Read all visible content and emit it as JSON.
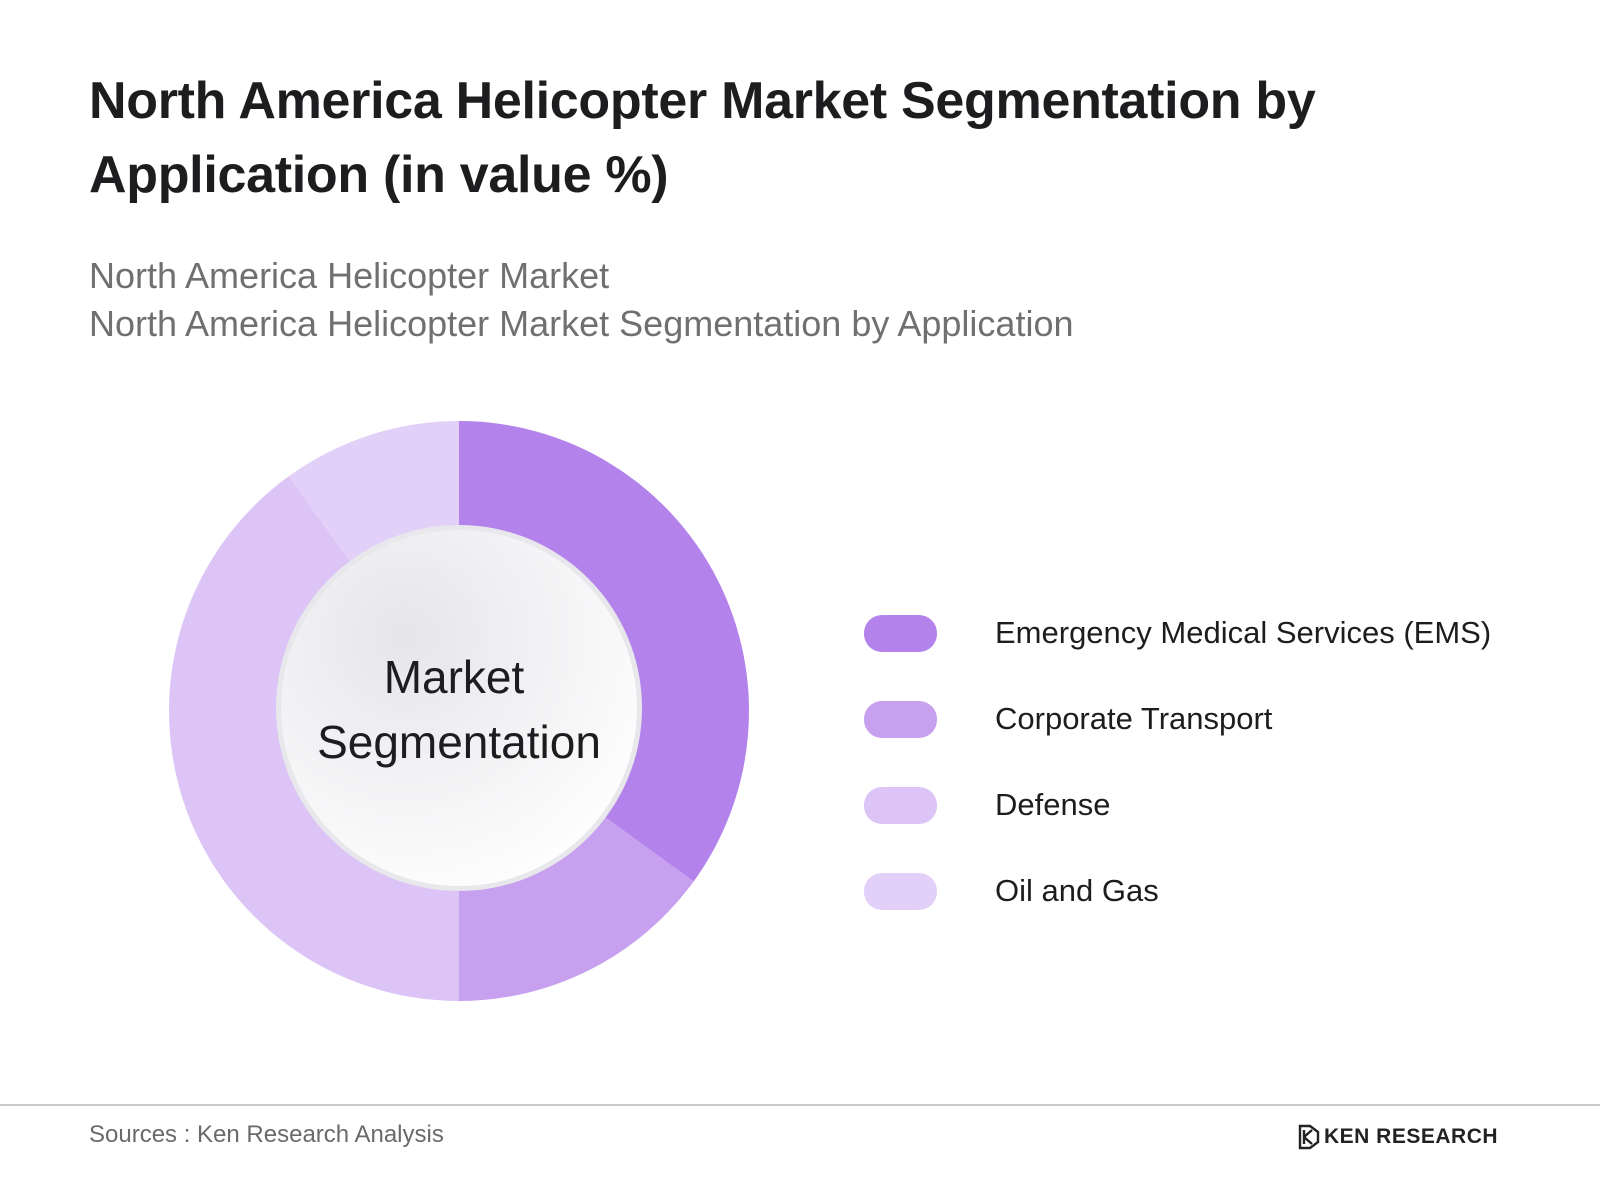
{
  "header": {
    "title_line1": "North America Helicopter Market Segmentation by",
    "title_line2": "Application (in value %)",
    "subtitle_line1": "North America Helicopter Market",
    "subtitle_line2": "North America Helicopter Market Segmentation by Application"
  },
  "chart_data": {
    "type": "pie",
    "title": "North America Helicopter Market Segmentation by Application (in value %)",
    "center_label_line1": "Market",
    "center_label_line2": "Segmentation",
    "categories": [
      "Emergency Medical Services (EMS)",
      "Corporate Transport",
      "Defense",
      "Oil and Gas"
    ],
    "values": [
      35,
      15,
      40,
      10
    ],
    "colors": [
      "#b383eb",
      "#c7a0ef",
      "#dcc4f6",
      "#e3d0f8"
    ],
    "legend_position": "right"
  },
  "footer": {
    "sources": "Sources : Ken Research Analysis",
    "brand": "KEN RESEARCH"
  }
}
